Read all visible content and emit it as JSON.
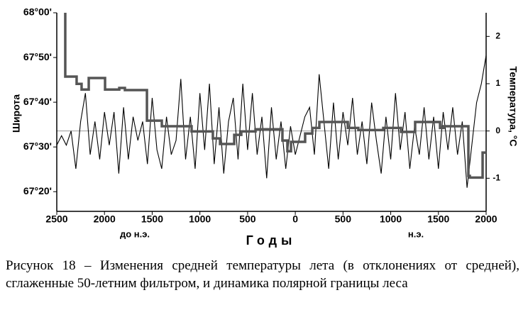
{
  "chart_data": {
    "type": "line",
    "x_label": "Годы",
    "y_label": "Широта",
    "y2_label": "Температура, °С",
    "annotations": [
      "до н.э.",
      "н.э."
    ],
    "caption": "Рисунок 18 – Изменения средней температуры лета (в отклонениях от средней), сглаженные 50-летним фильтром, и динамика полярной границы леса",
    "xlim": [
      -2500,
      2000
    ],
    "xticks": [
      {
        "value": -2500,
        "label": "2500"
      },
      {
        "value": -2000,
        "label": "2000"
      },
      {
        "value": -1500,
        "label": "1500"
      },
      {
        "value": -1000,
        "label": "1000"
      },
      {
        "value": -500,
        "label": "500"
      },
      0,
      500,
      1000,
      1500,
      2000
    ],
    "ylim": [
      67.26,
      68.0
    ],
    "yticks": [
      {
        "value": 67.3333,
        "label": "67°20'"
      },
      {
        "value": 67.5,
        "label": "67°30'"
      },
      {
        "value": 67.6667,
        "label": "67°40'"
      },
      {
        "value": 67.8333,
        "label": "67°50'"
      },
      {
        "value": 68.0,
        "label": "68°00'"
      }
    ],
    "y2lim": [
      -1.7,
      2.5
    ],
    "y2ticks": [
      -1,
      0,
      1,
      2
    ],
    "series": [
      {
        "color": "#000000",
        "axis": "y2",
        "x": [
          -2500,
          -2450,
          -2400,
          -2350,
          -2300,
          -2250,
          -2200,
          -2150,
          -2100,
          -2050,
          -2000,
          -1950,
          -1900,
          -1850,
          -1800,
          -1750,
          -1700,
          -1650,
          -1600,
          -1550,
          -1500,
          -1450,
          -1400,
          -1350,
          -1300,
          -1250,
          -1200,
          -1150,
          -1100,
          -1050,
          -1000,
          -950,
          -900,
          -850,
          -800,
          -750,
          -700,
          -650,
          -600,
          -550,
          -500,
          -450,
          -400,
          -350,
          -300,
          -250,
          -200,
          -150,
          -100,
          -50,
          0,
          50,
          100,
          150,
          200,
          250,
          300,
          350,
          400,
          450,
          500,
          550,
          600,
          650,
          700,
          750,
          800,
          850,
          900,
          950,
          1000,
          1050,
          1100,
          1150,
          1200,
          1250,
          1300,
          1350,
          1400,
          1450,
          1500,
          1550,
          1600,
          1650,
          1700,
          1750,
          1800,
          1850,
          1900,
          1950,
          2000
        ],
        "values": [
          -0.3,
          -0.1,
          -0.3,
          0.0,
          -0.8,
          0.2,
          0.8,
          -0.5,
          0.2,
          -0.6,
          0.4,
          -0.3,
          0.4,
          -0.9,
          0.5,
          -0.6,
          0.3,
          -0.2,
          0.2,
          -0.7,
          0.7,
          -0.4,
          -0.8,
          0.3,
          -0.5,
          -0.2,
          1.1,
          -0.6,
          0.3,
          -0.8,
          0.8,
          -0.4,
          1.0,
          -0.7,
          0.5,
          -0.9,
          0.2,
          0.7,
          -0.6,
          1.0,
          -0.4,
          0.8,
          -0.5,
          0.3,
          -1.0,
          0.5,
          -0.6,
          0.2,
          -0.8,
          0.1,
          -0.5,
          -0.1,
          0.3,
          0.5,
          -0.5,
          1.2,
          0.2,
          -0.8,
          0.6,
          -0.6,
          0.4,
          -0.3,
          0.7,
          -0.5,
          0.2,
          -0.7,
          0.6,
          -0.2,
          -0.9,
          0.3,
          -0.6,
          0.8,
          -0.4,
          0.4,
          -0.8,
          0.1,
          -0.5,
          0.5,
          -0.6,
          0.3,
          -0.8,
          0.4,
          -0.4,
          0.5,
          -0.5,
          0.2,
          -1.2,
          -0.3,
          0.6,
          1.0,
          1.6
        ]
      },
      {
        "color": "#555555",
        "axis": "y",
        "step": "post",
        "x": [
          -2411,
          -2411,
          -2292,
          -2240,
          -2165,
          -1994,
          -1845,
          -1786,
          -1555,
          -1399,
          -1087,
          -864,
          -789,
          -640,
          -566,
          -417,
          -135,
          -83,
          -45,
          103,
          178,
          252,
          550,
          661,
          922,
          1108,
          1256,
          1517,
          1554,
          1814,
          1829,
          1903,
          1963,
          2000
        ],
        "values": [
          68.0,
          67.762,
          67.735,
          67.714,
          67.757,
          67.714,
          67.72,
          67.712,
          67.598,
          67.577,
          67.558,
          67.532,
          67.511,
          67.545,
          67.558,
          67.566,
          67.524,
          67.484,
          67.519,
          67.55,
          67.571,
          67.593,
          67.571,
          67.563,
          67.571,
          67.556,
          67.593,
          67.571,
          67.577,
          67.392,
          67.386,
          67.386,
          67.479,
          67.479
        ]
      }
    ]
  }
}
